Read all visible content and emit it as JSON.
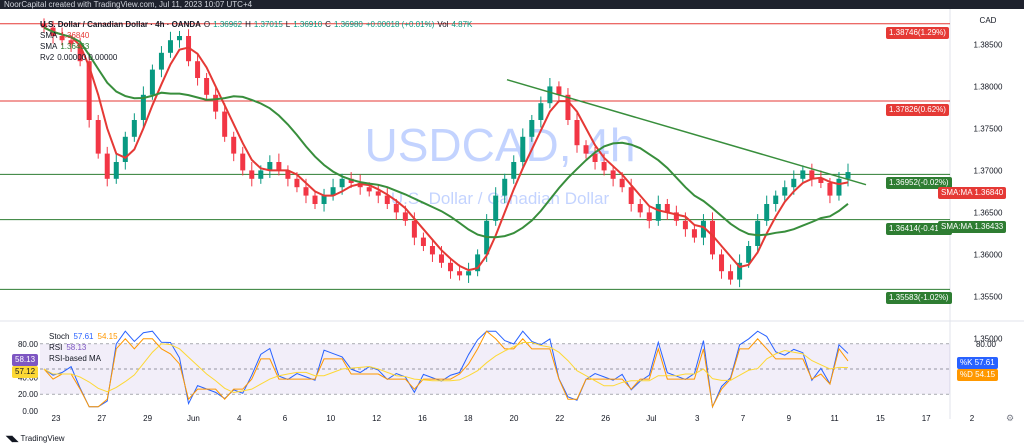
{
  "topbar": {
    "text": "NoorCapital created with TradingView.com, Jul 11, 2023 10:07 UTC+4"
  },
  "legend": {
    "symbol": "U.S. Dollar / Canadian Dollar · 4h · OANDA",
    "open_label": "O",
    "open": "1.36962",
    "high_label": "H",
    "high": "1.37015",
    "low_label": "L",
    "low": "1.36910",
    "close_label": "C",
    "close": "1.36980",
    "change": "+0.00018 (+0.01%)",
    "vol_label": "Vol",
    "vol": "4.87K",
    "sma1_label": "SMA",
    "sma1_value": "1.36840",
    "sma2_label": "SMA",
    "sma2_value": "1.36433",
    "rv_label": "Rv2",
    "rv_values": "0.00000  0.00000"
  },
  "watermark": {
    "ticker": "USDCAD, 4h",
    "name": "U.S. Dollar / Canadian Dollar"
  },
  "price_axis": {
    "currency": "CAD",
    "labels": [
      "1.38500",
      "1.38000",
      "1.37500",
      "1.37000",
      "1.36500",
      "1.36000",
      "1.35500",
      "1.35000"
    ]
  },
  "levels": [
    {
      "price": 1.38746,
      "label": "1.38746(1.29%)",
      "color": "#e53935"
    },
    {
      "price": 1.37826,
      "label": "1.37826(0.62%)",
      "color": "#e53935"
    },
    {
      "price": 1.36952,
      "label": "1.36952(-0.02%)",
      "color": "#2e7d32"
    },
    {
      "price": 1.36414,
      "label": "1.36414(-0.41%)",
      "color": "#2e7d32"
    },
    {
      "price": 1.35583,
      "label": "1.35583(-1.02%)",
      "color": "#2e7d32"
    }
  ],
  "sma_badges": [
    {
      "text": "SMA:MA",
      "value": "1.36840",
      "color": "#e53935",
      "price": 1.3684
    },
    {
      "text": "SMA:MA",
      "value": "1.36433",
      "color": "#2e7d32",
      "price": 1.36433
    }
  ],
  "rsi_legend": {
    "stoch_label": "Stoch",
    "stoch_k": "57.61",
    "stoch_d": "54.15",
    "rsi_label": "RSI",
    "rsi_value": "58.13",
    "rsi_ma_label": "RSI-based MA",
    "rsi_ma_value": "57.12"
  },
  "rsi_axis": {
    "labels": [
      "80.00",
      "60.00",
      "40.00",
      "20.00",
      "0.00"
    ],
    "right_label": "80.00"
  },
  "rsi_badges": [
    {
      "text": "%K",
      "value": "57.61",
      "color": "#2962ff"
    },
    {
      "text": "%D",
      "value": "54.15",
      "color": "#ff9800"
    }
  ],
  "rsi_left_badges": [
    {
      "value": "58.13",
      "color": "#7e57c2"
    },
    {
      "value": "57.12",
      "color": "#fdd835"
    }
  ],
  "time_axis": [
    "23",
    "27",
    "29",
    "Jun",
    "4",
    "6",
    "10",
    "12",
    "16",
    "18",
    "20",
    "22",
    "26",
    "Jul",
    "3",
    "7",
    "9",
    "11",
    "15",
    "17",
    "2"
  ],
  "footer": {
    "brand": "TradingView"
  },
  "colors": {
    "up": "#089981",
    "down": "#f23645",
    "sma_fast": "#e53935",
    "sma_slow": "#388e3c",
    "trend": "#388e3c"
  },
  "chart_data": {
    "type": "candlestick",
    "title": "U.S. Dollar / Canadian Dollar · 4h · OANDA",
    "ylim": [
      1.3535,
      1.3885
    ],
    "rsi_ylim": [
      0,
      100
    ],
    "price_series": [
      1.387,
      1.386,
      1.3855,
      1.385,
      1.383,
      1.376,
      1.372,
      1.369,
      1.371,
      1.374,
      1.376,
      1.379,
      1.382,
      1.384,
      1.3855,
      1.386,
      1.383,
      1.381,
      1.379,
      1.377,
      1.374,
      1.372,
      1.37,
      1.369,
      1.37,
      1.371,
      1.37,
      1.369,
      1.368,
      1.367,
      1.366,
      1.367,
      1.368,
      1.369,
      1.3685,
      1.368,
      1.3675,
      1.367,
      1.366,
      1.365,
      1.364,
      1.362,
      1.361,
      1.36,
      1.359,
      1.358,
      1.3575,
      1.358,
      1.36,
      1.364,
      1.367,
      1.369,
      1.371,
      1.374,
      1.376,
      1.378,
      1.38,
      1.379,
      1.376,
      1.373,
      1.372,
      1.371,
      1.37,
      1.369,
      1.368,
      1.366,
      1.365,
      1.364,
      1.366,
      1.365,
      1.364,
      1.363,
      1.362,
      1.364,
      1.36,
      1.358,
      1.357,
      1.359,
      1.361,
      1.364,
      1.366,
      1.367,
      1.368,
      1.369,
      1.37,
      1.369,
      1.3685,
      1.367,
      1.369,
      1.3698
    ]
  }
}
